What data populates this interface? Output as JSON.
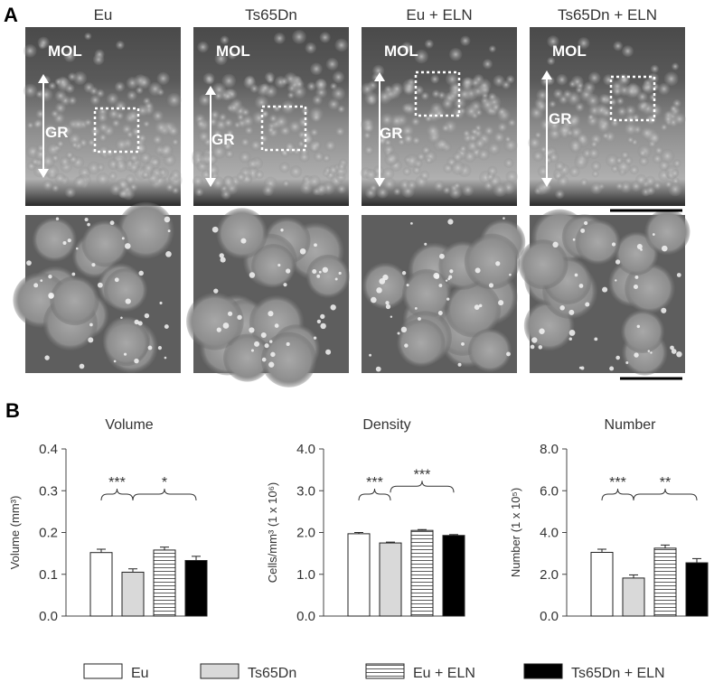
{
  "panel_a": {
    "label": "A",
    "columns": [
      "Eu",
      "Ts65Dn",
      "Eu + ELN",
      "Ts65Dn + ELN"
    ],
    "layer_labels": [
      "MOL",
      "GR"
    ]
  },
  "panel_b": {
    "label": "B"
  },
  "legend": [
    {
      "name": "Eu",
      "color": "#ffffff"
    },
    {
      "name": "Ts65Dn",
      "color": "#d9d9d9"
    },
    {
      "name": "Eu + ELN",
      "color": "#ffffff",
      "fill": "hatch"
    },
    {
      "name": "Ts65Dn + ELN",
      "color": "#000000"
    }
  ],
  "chart_data": [
    {
      "type": "bar",
      "title": "Volume",
      "y_label": "Volume (mm³)",
      "values": [
        0.152,
        0.105,
        0.158,
        0.133
      ],
      "errors": [
        0.008,
        0.008,
        0.007,
        0.01
      ],
      "ylim": [
        0,
        0.4
      ],
      "yticks": [
        {
          "value": 0,
          "label": "0.0"
        },
        0.1,
        0.2,
        0.3,
        0.4
      ],
      "annotations": [
        "***",
        "*"
      ]
    },
    {
      "type": "bar",
      "title": "Density",
      "y_label": "Cells/mm³ (1 x 10⁶)",
      "values": [
        1.97,
        1.75,
        2.05,
        1.93
      ],
      "errors": [
        0.03,
        0.02,
        0.02,
        0.02
      ],
      "ylim": [
        0,
        4
      ],
      "yticks": [
        {
          "value": 0,
          "label": "0.0"
        },
        {
          "value": 1,
          "label": "1.0"
        },
        {
          "value": 2,
          "label": "2.0"
        },
        {
          "value": 3,
          "label": "3.0"
        },
        {
          "value": 4,
          "label": "4.0"
        }
      ],
      "annotations": [
        "***",
        "***"
      ]
    },
    {
      "type": "bar",
      "title": "Number",
      "y_label": "Number (1 x 10⁵)",
      "values": [
        3.05,
        1.82,
        3.25,
        2.55
      ],
      "errors": [
        0.15,
        0.15,
        0.15,
        0.2
      ],
      "ylim": [
        0,
        8
      ],
      "yticks": [
        {
          "value": 0,
          "label": "0.0"
        },
        {
          "value": 2,
          "label": "2.0"
        },
        {
          "value": 4,
          "label": "4.0"
        },
        {
          "value": 6,
          "label": "6.0"
        },
        {
          "value": 8,
          "label": "8.0"
        }
      ],
      "annotations": [
        "***",
        "**"
      ]
    }
  ]
}
